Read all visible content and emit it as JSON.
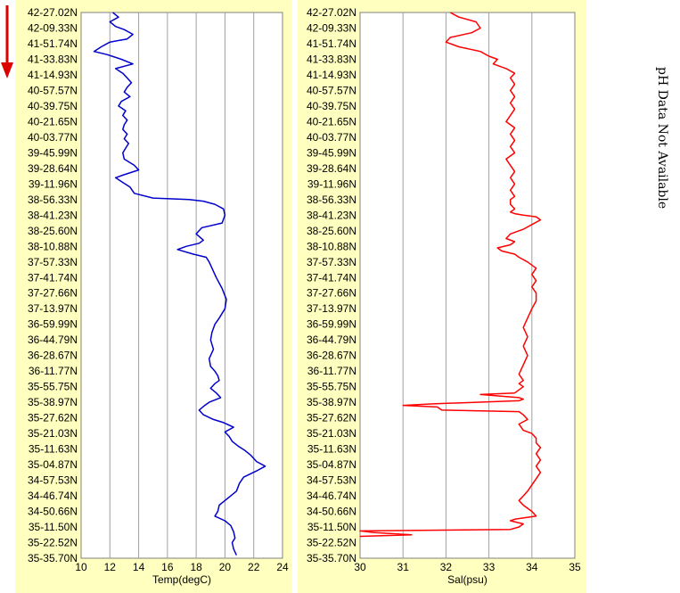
{
  "note": "pH Data Not Available",
  "colors": {
    "panel_bg": "#ffffc0",
    "temp_line": "#0000cc",
    "sal_line": "#ff0000",
    "grid": "#a0a0a0",
    "arrow": "#dd0000"
  },
  "arrow_icon": "red-down-arrow",
  "chart_data": [
    {
      "type": "line",
      "xlabel": "Temp(degC)",
      "ylabel": "",
      "xlim": [
        10,
        24
      ],
      "xticks": [
        "10",
        "12",
        "14",
        "16",
        "18",
        "20",
        "22",
        "24"
      ],
      "grid": true,
      "yticks": [
        "42-27.02N",
        "42-09.33N",
        "41-51.74N",
        "41-33.83N",
        "41-14.93N",
        "40-57.57N",
        "40-39.75N",
        "40-21.65N",
        "40-03.77N",
        "39-45.99N",
        "39-28.64N",
        "39-11.96N",
        "38-56.33N",
        "38-41.23N",
        "38-25.60N",
        "38-10.88N",
        "37-57.33N",
        "37-41.74N",
        "37-27.66N",
        "37-13.97N",
        "36-59.99N",
        "36-44.79N",
        "36-28.67N",
        "36-11.77N",
        "35-55.75N",
        "35-38.97N",
        "35-27.62N",
        "35-21.03N",
        "35-11.63N",
        "35-04.87N",
        "34-57.53N",
        "34-46.74N",
        "34-50.66N",
        "35-11.50N",
        "35-22.52N",
        "35-35.70N"
      ],
      "series": [
        {
          "x": [
            12.2,
            12.6,
            12.0,
            12.4,
            13.0,
            13.6,
            13.2,
            12.0,
            11.4,
            10.9,
            11.8,
            12.8,
            13.6,
            12.4,
            12.9,
            13.2,
            13.5,
            13.2,
            13.0,
            13.4,
            12.8,
            12.6,
            13.1,
            12.9,
            13.2,
            13.0,
            12.9,
            13.2,
            13.0,
            13.3,
            13.1,
            12.9,
            13.0,
            13.7,
            14.0,
            13.0,
            12.4,
            12.9,
            13.4,
            13.7,
            15.0,
            17.5,
            18.5,
            19.3,
            19.9,
            20.0,
            19.8,
            18.4,
            18.0,
            18.5,
            18.2,
            17.3,
            16.7,
            17.8,
            18.7,
            18.9,
            19.1,
            19.4,
            19.8,
            20.1,
            20.0,
            19.6,
            19.3,
            19.1,
            19.0,
            19.2,
            18.9,
            19.0,
            19.3,
            19.5,
            19.6,
            19.3,
            19.0,
            19.4,
            19.7,
            18.9,
            18.6,
            18.2,
            18.5,
            19.2,
            19.9,
            20.6,
            20.0,
            20.3,
            20.5,
            20.9,
            21.4,
            21.8,
            22.2,
            22.8,
            22.2,
            21.3,
            21.0,
            20.8,
            20.4,
            20.0,
            19.6,
            19.5,
            19.3,
            20.0,
            20.4,
            20.6,
            20.7,
            20.5,
            20.6,
            20.8
          ],
          "y": [
            0.0,
            0.3,
            0.6,
            0.9,
            1.1,
            1.4,
            1.7,
            1.9,
            2.2,
            2.5,
            2.7,
            3.0,
            3.3,
            3.6,
            3.9,
            4.2,
            4.5,
            4.8,
            5.1,
            5.4,
            5.7,
            6.0,
            6.3,
            6.6,
            6.9,
            7.2,
            7.5,
            7.8,
            8.1,
            8.4,
            8.7,
            9.0,
            9.4,
            9.8,
            10.1,
            10.4,
            10.6,
            10.9,
            11.2,
            11.6,
            11.9,
            12.0,
            12.1,
            12.3,
            12.6,
            13.0,
            13.5,
            13.8,
            14.2,
            14.6,
            14.8,
            15.0,
            15.2,
            15.5,
            15.7,
            16.0,
            16.4,
            17.0,
            17.7,
            18.4,
            19.0,
            19.6,
            20.0,
            20.5,
            21.0,
            21.6,
            22.2,
            22.7,
            23.0,
            23.3,
            23.6,
            23.8,
            24.1,
            24.4,
            24.7,
            25.0,
            25.2,
            25.5,
            25.8,
            26.1,
            26.3,
            26.6,
            26.9,
            27.2,
            27.5,
            27.8,
            28.1,
            28.4,
            28.8,
            29.1,
            29.4,
            29.8,
            30.2,
            30.7,
            31.0,
            31.3,
            31.6,
            32.0,
            32.3,
            32.6,
            32.9,
            33.3,
            33.7,
            34.0,
            34.4,
            34.8
          ]
        }
      ]
    },
    {
      "type": "line",
      "xlabel": "Sal(psu)",
      "ylabel": "",
      "xlim": [
        30,
        35
      ],
      "xticks": [
        "30",
        "31",
        "32",
        "33",
        "34",
        "35"
      ],
      "grid": true,
      "yticks": [
        "42-27.02N",
        "42-09.33N",
        "41-51.74N",
        "41-33.83N",
        "41-14.93N",
        "40-57.57N",
        "40-39.75N",
        "40-21.65N",
        "40-03.77N",
        "39-45.99N",
        "39-28.64N",
        "39-11.96N",
        "38-56.33N",
        "38-41.23N",
        "38-25.60N",
        "38-10.88N",
        "37-57.33N",
        "37-41.74N",
        "37-27.66N",
        "37-13.97N",
        "36-59.99N",
        "36-44.79N",
        "36-28.67N",
        "36-11.77N",
        "35-55.75N",
        "35-38.97N",
        "35-27.62N",
        "35-21.03N",
        "35-11.63N",
        "35-04.87N",
        "34-57.53N",
        "34-46.74N",
        "34-50.66N",
        "35-11.50N",
        "35-22.52N",
        "35-35.70N"
      ],
      "series": [
        {
          "x": [
            32.1,
            32.3,
            32.7,
            32.8,
            32.6,
            32.1,
            32.0,
            32.3,
            32.8,
            33.0,
            33.2,
            33.1,
            33.4,
            33.6,
            33.5,
            33.6,
            33.5,
            33.6,
            33.5,
            33.6,
            33.5,
            33.4,
            33.6,
            33.5,
            33.6,
            33.5,
            33.6,
            33.4,
            33.5,
            33.6,
            33.5,
            33.6,
            33.5,
            33.6,
            33.5,
            33.5,
            33.6,
            33.5,
            33.6,
            33.8,
            34.1,
            34.2,
            34.0,
            33.8,
            33.5,
            33.4,
            33.6,
            33.5,
            33.2,
            33.3,
            33.6,
            33.7,
            33.9,
            34.1,
            34.0,
            34.1,
            34.0,
            34.1,
            34.1,
            34.0,
            33.9,
            33.8,
            33.9,
            33.8,
            33.9,
            33.8,
            33.7,
            33.8,
            33.7,
            33.8,
            33.7,
            33.6,
            32.8,
            33.7,
            33.8,
            33.7,
            31.7,
            31.0,
            31.8,
            31.9,
            33.7,
            33.8,
            33.9,
            33.7,
            33.8,
            34.0,
            34.1,
            34.1,
            34.2,
            34.1,
            34.2,
            34.1,
            34.2,
            34.1,
            34.0,
            33.9,
            33.8,
            33.7,
            33.8,
            34.0,
            34.1,
            33.6,
            33.5,
            33.8,
            33.7,
            33.5,
            30.0,
            30.3,
            31.2,
            30.0
          ],
          "y": [
            0.0,
            0.3,
            0.6,
            1.0,
            1.3,
            1.6,
            1.9,
            2.2,
            2.5,
            2.8,
            3.0,
            3.3,
            3.6,
            3.9,
            4.2,
            4.6,
            5.0,
            5.4,
            5.8,
            6.2,
            6.6,
            7.0,
            7.4,
            7.8,
            8.2,
            8.6,
            9.0,
            9.4,
            9.8,
            10.2,
            10.6,
            11.0,
            11.4,
            11.8,
            12.0,
            12.3,
            12.6,
            12.8,
            12.9,
            13.0,
            13.1,
            13.3,
            13.6,
            13.9,
            14.2,
            14.5,
            14.7,
            14.9,
            15.1,
            15.3,
            15.5,
            15.7,
            16.0,
            16.4,
            16.8,
            17.2,
            17.6,
            18.0,
            18.5,
            19.0,
            19.6,
            20.2,
            20.8,
            21.4,
            22.0,
            22.6,
            23.2,
            23.6,
            23.8,
            24.0,
            24.2,
            24.4,
            24.5,
            24.7,
            24.8,
            24.9,
            25.1,
            25.2,
            25.3,
            25.5,
            25.6,
            25.8,
            26.1,
            26.4,
            26.8,
            27.0,
            27.3,
            27.6,
            27.9,
            28.3,
            28.7,
            29.1,
            29.5,
            29.9,
            30.3,
            30.7,
            31.0,
            31.3,
            31.6,
            32.0,
            32.3,
            32.5,
            32.6,
            32.8,
            33.0,
            33.15,
            33.25,
            33.35,
            33.5,
            33.6
          ]
        }
      ]
    }
  ]
}
